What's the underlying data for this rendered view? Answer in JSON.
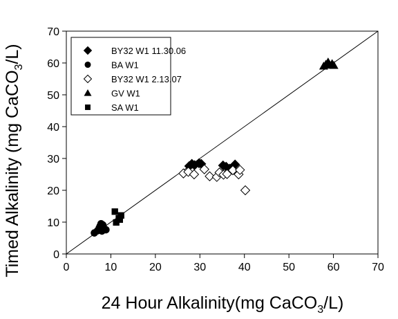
{
  "chart_data": {
    "type": "scatter",
    "title": "",
    "xlabel": {
      "main": "24 Hour Alkalinity(mg CaCO",
      "sub": "3",
      "tail": "/L)"
    },
    "ylabel": {
      "main": "Timed Alkalinity (mg CaCO",
      "sub": "3",
      "tail": "/L)"
    },
    "xlim": [
      0,
      70
    ],
    "ylim": [
      0,
      70
    ],
    "xticks": [
      0,
      10,
      20,
      30,
      40,
      50,
      60,
      70
    ],
    "yticks": [
      0,
      10,
      20,
      30,
      40,
      50,
      60,
      70
    ],
    "grid": false,
    "legend_position": "top-left",
    "reference_line": {
      "type": "1:1",
      "from": [
        0,
        0
      ],
      "to": [
        70,
        70
      ]
    },
    "series": [
      {
        "name": "BY32 W1 11.30.06",
        "marker": "diamond-filled",
        "points": [
          [
            27.6,
            27.6
          ],
          [
            28.2,
            28.3
          ],
          [
            28.8,
            27.9
          ],
          [
            29.8,
            28.5
          ],
          [
            30.3,
            28.3
          ],
          [
            35.2,
            27.8
          ],
          [
            35.9,
            27.4
          ],
          [
            36.7,
            26.8
          ],
          [
            37.9,
            28.1
          ]
        ]
      },
      {
        "name": "BA W1",
        "marker": "circle-filled",
        "points": [
          [
            6.3,
            6.6
          ],
          [
            7.0,
            7.3
          ],
          [
            7.4,
            8.2
          ],
          [
            7.6,
            8.8
          ],
          [
            7.8,
            9.5
          ],
          [
            8.0,
            7.2
          ],
          [
            8.2,
            9.1
          ],
          [
            8.5,
            8.0
          ],
          [
            8.9,
            7.6
          ]
        ]
      },
      {
        "name": "BY32 W1 2.13.07",
        "marker": "diamond-open",
        "points": [
          [
            26.3,
            25.3
          ],
          [
            27.4,
            25.8
          ],
          [
            28.7,
            25.0
          ],
          [
            31.0,
            26.6
          ],
          [
            32.2,
            24.4
          ],
          [
            33.8,
            24.2
          ],
          [
            34.4,
            25.6
          ],
          [
            35.3,
            24.9
          ],
          [
            36.1,
            25.1
          ],
          [
            37.4,
            26.3
          ],
          [
            38.7,
            25.0
          ],
          [
            39.0,
            26.4
          ],
          [
            40.2,
            20.0
          ]
        ]
      },
      {
        "name": "GV W1",
        "marker": "triangle-filled",
        "points": [
          [
            57.8,
            59.0
          ],
          [
            58.3,
            59.6
          ],
          [
            58.8,
            60.3
          ],
          [
            59.2,
            59.3
          ],
          [
            59.7,
            59.8
          ],
          [
            60.1,
            59.2
          ]
        ]
      },
      {
        "name": "SA W1",
        "marker": "square-filled",
        "points": [
          [
            10.9,
            13.3
          ],
          [
            11.2,
            9.9
          ],
          [
            11.8,
            11.2
          ],
          [
            12.3,
            12.1
          ],
          [
            12.0,
            10.8
          ]
        ]
      }
    ]
  }
}
